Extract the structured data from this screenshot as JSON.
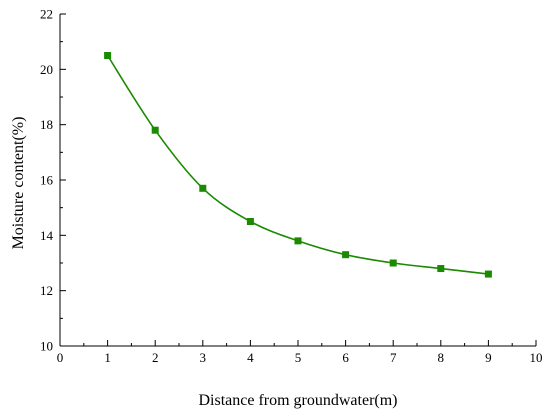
{
  "chart_data": {
    "type": "line",
    "title": "",
    "xlabel": "Distance from groundwater(m)",
    "ylabel": "Moisture content(%)",
    "xlim": [
      0,
      10
    ],
    "ylim": [
      10,
      22
    ],
    "xticks": [
      0,
      1,
      2,
      3,
      4,
      5,
      6,
      7,
      8,
      9,
      10
    ],
    "yticks": [
      10,
      12,
      14,
      16,
      18,
      20,
      22
    ],
    "grid": false,
    "legend": "none",
    "series": [
      {
        "x": [
          1,
          2,
          3,
          4,
          5,
          6,
          7,
          8,
          9
        ],
        "values": [
          20.5,
          17.8,
          15.7,
          14.5,
          13.8,
          13.3,
          13.0,
          12.8,
          12.6
        ],
        "color": "#1a8a00",
        "marker": "square",
        "smooth": true
      }
    ]
  }
}
